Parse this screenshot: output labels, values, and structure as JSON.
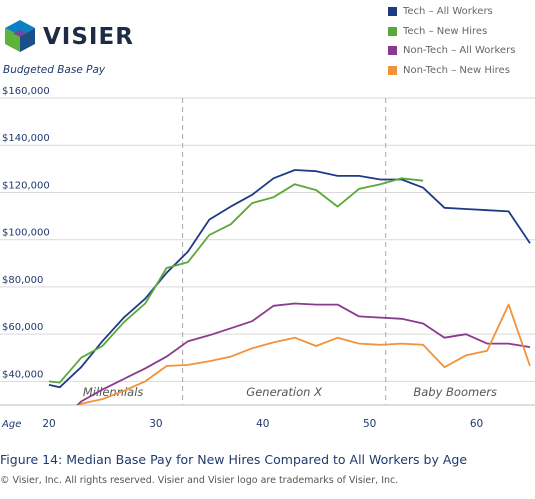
{
  "logo": {
    "text": "VISIER",
    "colors": [
      "#0f7fc4",
      "#5fb33b",
      "#1a4f8a",
      "#7d3f98"
    ]
  },
  "caption": "Figure 14: Median Base Pay for New Hires Compared to All Workers by Age",
  "copyright": "© Visier, Inc. All rights reserved. Visier and Visier logo are trademarks of Visier, Inc.",
  "chart_data": {
    "type": "line",
    "title": "",
    "ylabel": "Budgeted Base Pay",
    "xlabel": "Age",
    "xlim": [
      20,
      65
    ],
    "ylim": [
      30000,
      160000
    ],
    "x_ticks": [
      20,
      30,
      40,
      50,
      60
    ],
    "y_ticks": [
      {
        "value": 40000,
        "label": "$40,000"
      },
      {
        "value": 60000,
        "label": "$60,000"
      },
      {
        "value": 80000,
        "label": "$80,000"
      },
      {
        "value": 100000,
        "label": "$100,000"
      },
      {
        "value": 120000,
        "label": "$120,000"
      },
      {
        "value": 140000,
        "label": "$140,000"
      },
      {
        "value": 160000,
        "label": "$160,000"
      }
    ],
    "grid": true,
    "legend_position": "top-right",
    "generation_dividers": [
      32.5,
      51.5
    ],
    "generation_labels": [
      {
        "label": "Millennials",
        "x": 26
      },
      {
        "label": "Generation X",
        "x": 42
      },
      {
        "label": "Baby Boomers",
        "x": 58
      }
    ],
    "series": [
      {
        "name": "Tech – All Workers",
        "color": "#1f3a87",
        "x": [
          20,
          21,
          23,
          25,
          27,
          29,
          31,
          33,
          35,
          37,
          39,
          41,
          43,
          45,
          47,
          49,
          51,
          53,
          55,
          57,
          59,
          61,
          63,
          65
        ],
        "y": [
          38500,
          37500,
          46000,
          57000,
          67000,
          75000,
          86000,
          95000,
          108500,
          114000,
          119000,
          126000,
          129500,
          129000,
          127000,
          127000,
          125500,
          125500,
          122000,
          113500,
          113000,
          112500,
          112000,
          98500
        ]
      },
      {
        "name": "Tech – New Hires",
        "color": "#5aa83a",
        "x": [
          20,
          21,
          23,
          25,
          27,
          29,
          31,
          33,
          35,
          37,
          39,
          41,
          43,
          45,
          47,
          49,
          51,
          53,
          55
        ],
        "y": [
          40000,
          39500,
          50000,
          55000,
          65000,
          73000,
          88000,
          90500,
          102000,
          106500,
          115500,
          118000,
          123500,
          121000,
          114000,
          121500,
          123500,
          126000,
          125000
        ]
      },
      {
        "name": "Non-Tech – All Workers",
        "color": "#8a3a8e",
        "x": [
          21,
          23,
          25,
          27,
          29,
          31,
          33,
          35,
          37,
          39,
          41,
          43,
          45,
          47,
          49,
          51,
          53,
          55,
          57,
          59,
          61,
          63,
          65
        ],
        "y": [
          22500,
          31500,
          36500,
          41000,
          45500,
          50500,
          57000,
          59500,
          62500,
          65500,
          72000,
          73000,
          72500,
          72500,
          67500,
          67000,
          66500,
          64500,
          58500,
          60000,
          56000,
          56000,
          54500
        ]
      },
      {
        "name": "Non-Tech – New Hires",
        "color": "#f2923a",
        "x": [
          21,
          23,
          25,
          27,
          29,
          31,
          33,
          35,
          37,
          39,
          41,
          43,
          45,
          47,
          49,
          51,
          53,
          55,
          57,
          59,
          61,
          63,
          65
        ],
        "y": [
          22000,
          30500,
          32500,
          36000,
          40000,
          46500,
          47000,
          48500,
          50500,
          54000,
          56500,
          58500,
          55000,
          58500,
          56000,
          55500,
          56000,
          55500,
          46000,
          51000,
          53000,
          72500,
          46500
        ]
      }
    ]
  }
}
